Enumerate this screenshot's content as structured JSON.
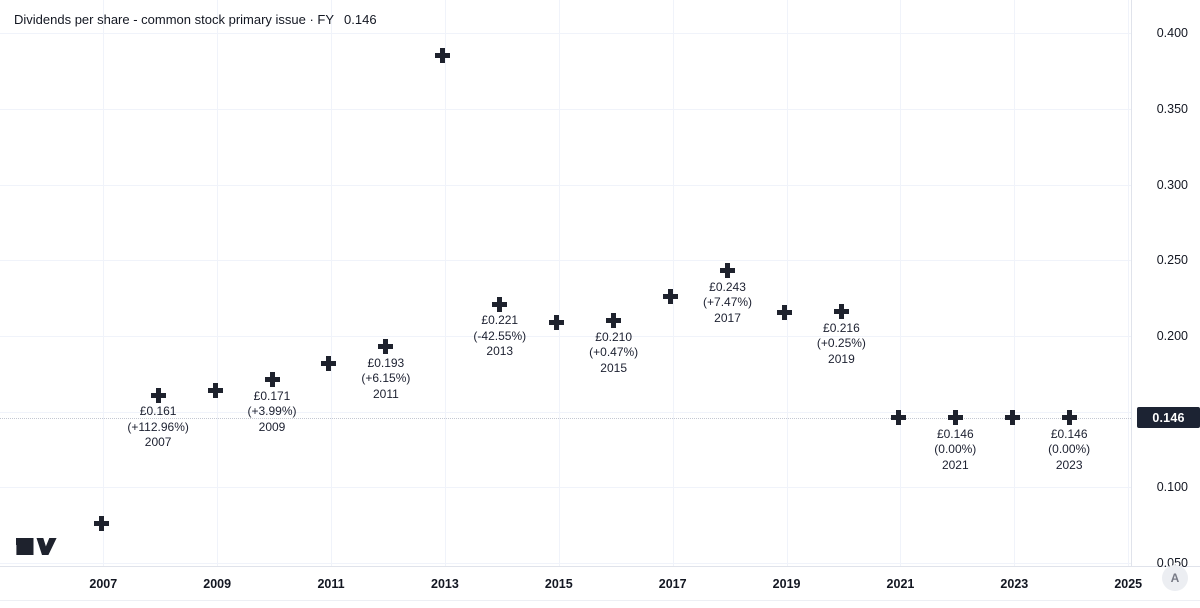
{
  "header": {
    "title": "Dividends per share - common stock primary issue · FY",
    "current_value": "0.146"
  },
  "chart_data": {
    "type": "scatter",
    "marker_style": "plus",
    "title": "Dividends per share - common stock primary issue · FY",
    "currency": "£",
    "x": [
      2006,
      2007,
      2008,
      2009,
      2010,
      2011,
      2012,
      2013,
      2014,
      2015,
      2016,
      2017,
      2018,
      2019,
      2020,
      2021,
      2022,
      2023
    ],
    "values": [
      0.076,
      0.161,
      0.164,
      0.171,
      0.182,
      0.193,
      0.385,
      0.221,
      0.209,
      0.21,
      0.226,
      0.243,
      0.2155,
      0.216,
      0.146,
      0.146,
      0.146,
      0.146
    ],
    "annotations": [
      {
        "year": 2007,
        "lines": [
          "£0.161",
          "(+112.96%)",
          "2007"
        ]
      },
      {
        "year": 2009,
        "lines": [
          "£0.171",
          "(+3.99%)",
          "2009"
        ]
      },
      {
        "year": 2011,
        "lines": [
          "£0.193",
          "(+6.15%)",
          "2011"
        ]
      },
      {
        "year": 2013,
        "lines": [
          "£0.221",
          "(-42.55%)",
          "2013"
        ]
      },
      {
        "year": 2015,
        "lines": [
          "£0.210",
          "(+0.47%)",
          "2015"
        ]
      },
      {
        "year": 2017,
        "lines": [
          "£0.243",
          "(+7.47%)",
          "2017"
        ]
      },
      {
        "year": 2019,
        "lines": [
          "£0.216",
          "(+0.25%)",
          "2019"
        ]
      },
      {
        "year": 2021,
        "lines": [
          "£0.146",
          "(0.00%)",
          "2021"
        ]
      },
      {
        "year": 2023,
        "lines": [
          "£0.146",
          "(0.00%)",
          "2023"
        ]
      }
    ],
    "current_value": 0.146,
    "ylim": [
      0.05,
      0.4
    ],
    "grid": true,
    "legend_position": "none",
    "y_ticks": [
      "0.400",
      "0.350",
      "0.300",
      "0.250",
      "0.200",
      "0.150",
      "0.100",
      "0.050"
    ],
    "x_ticks": [
      "2007",
      "2009",
      "2011",
      "2013",
      "2015",
      "2017",
      "2019",
      "2021",
      "2023",
      "2025"
    ]
  },
  "y_axis": {
    "badge_value": "0.146"
  },
  "x_axis": {
    "auto_label": "A"
  },
  "logo": {
    "name": "TradingView"
  },
  "colors": {
    "marker": "#1e222d",
    "grid": "#f0f3fa",
    "axis_line": "#e0e3eb",
    "text": "#131722",
    "badge_bg": "#1c2333",
    "badge_text": "#ffffff",
    "muted": "#787b86"
  }
}
